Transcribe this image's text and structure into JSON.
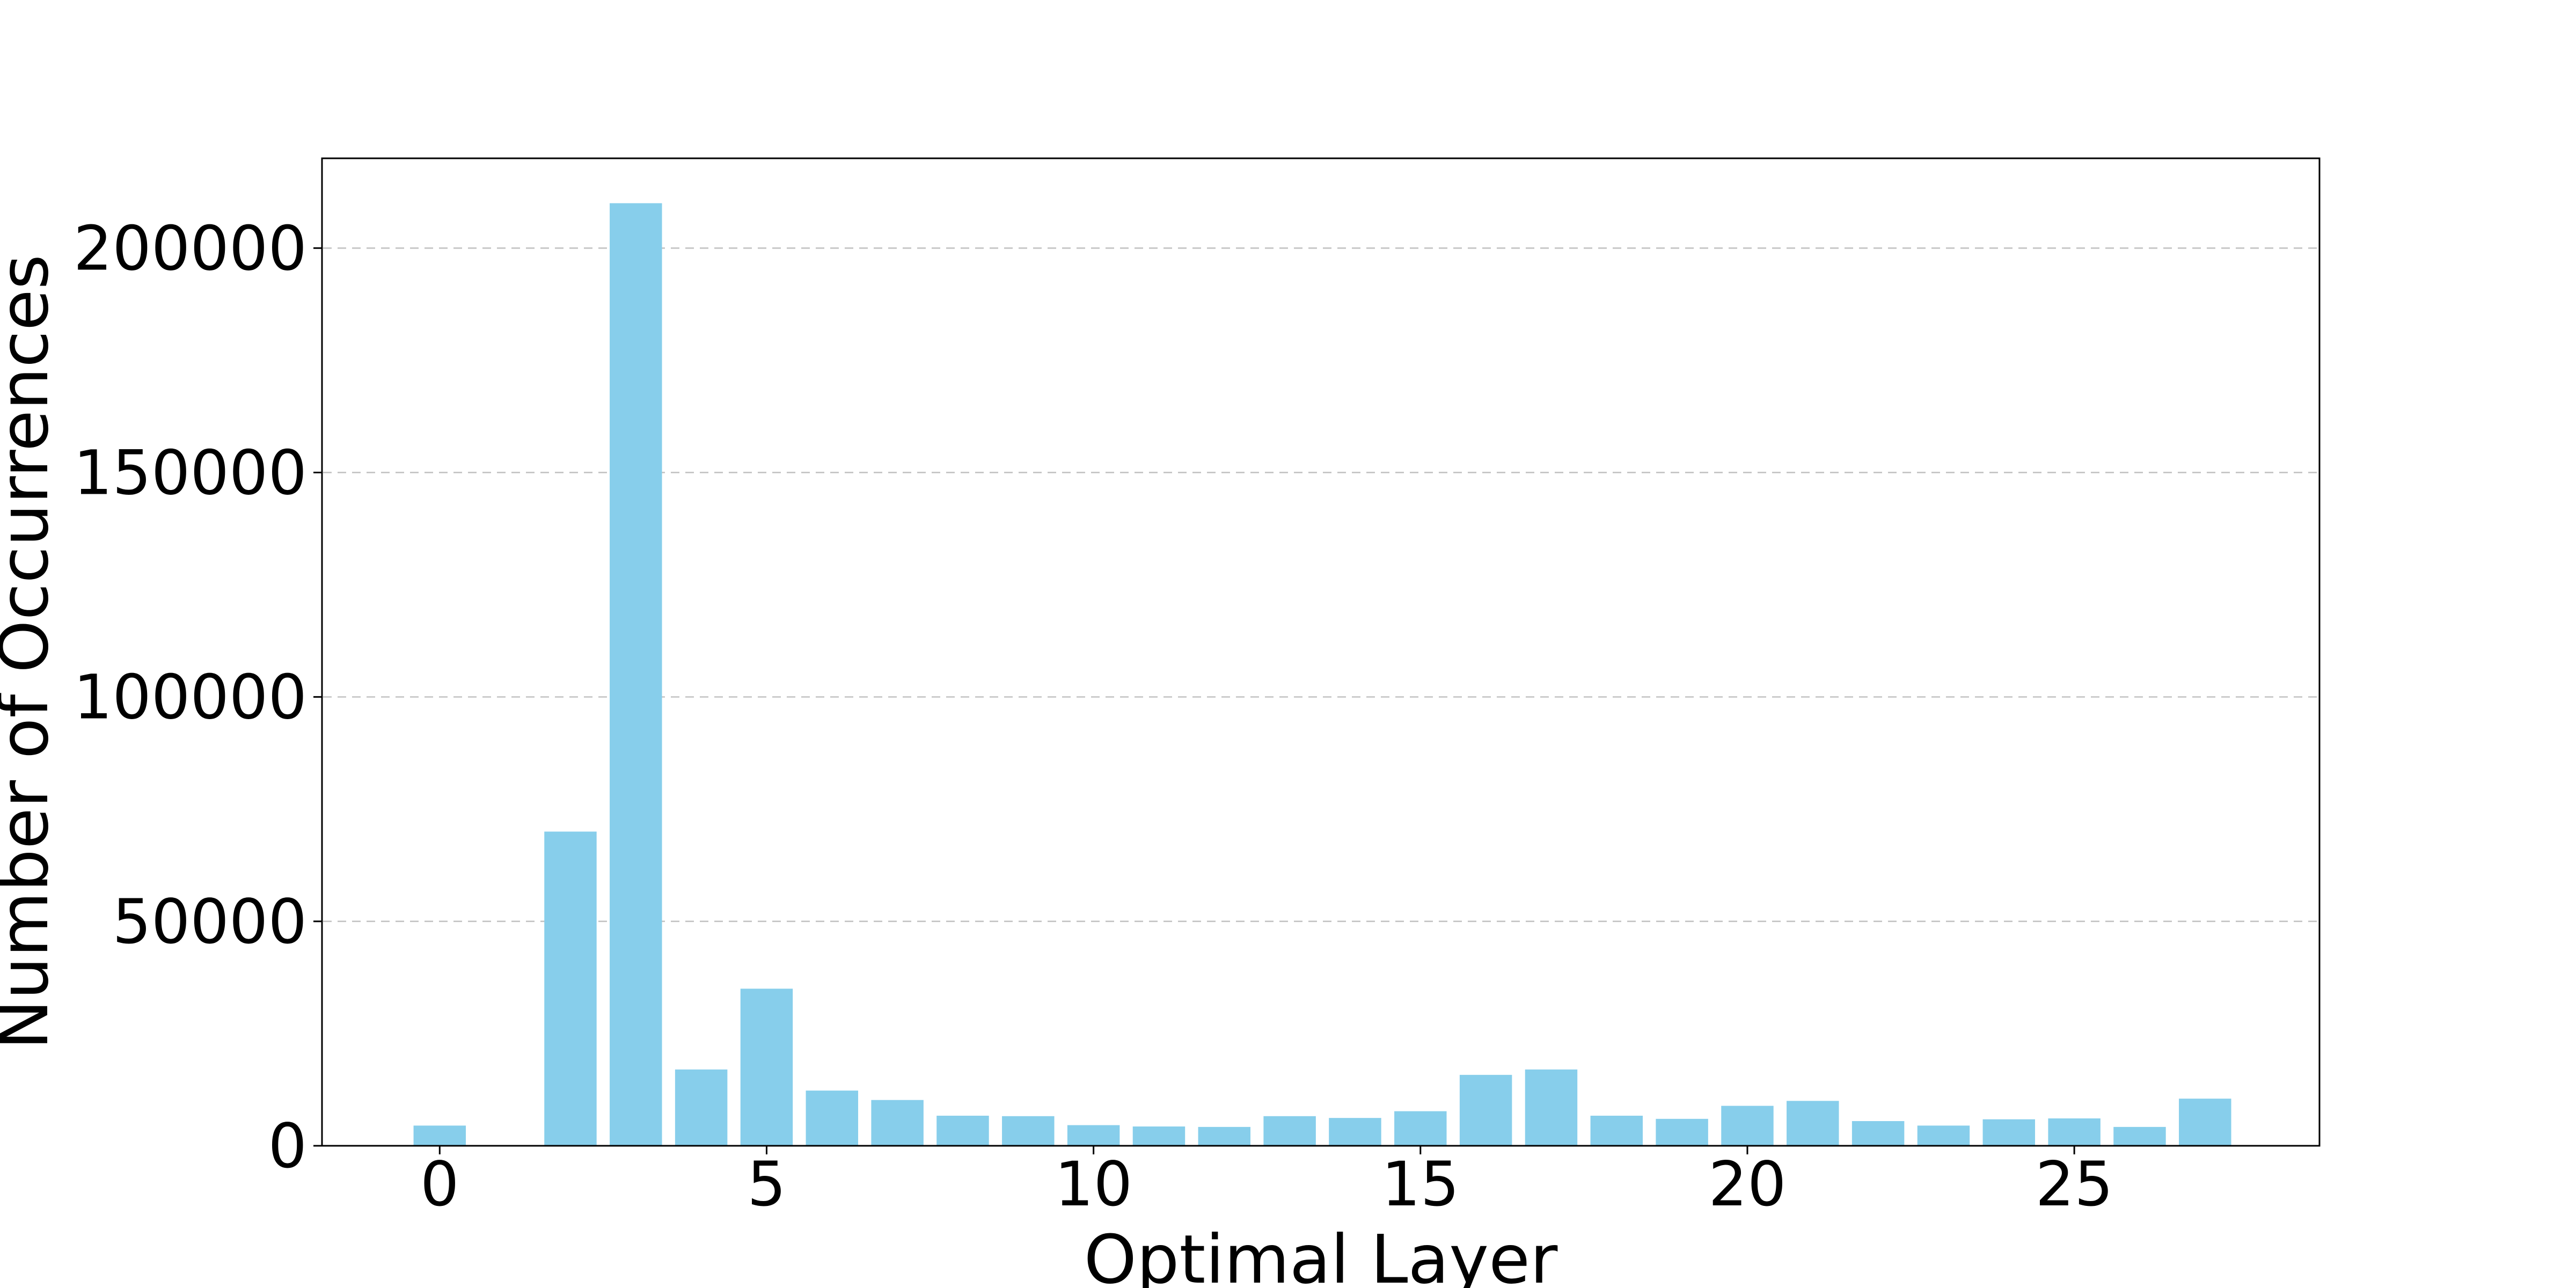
{
  "figure": {
    "background": "#ffffff",
    "spine_color": "#000000",
    "tick_color": "#000000"
  },
  "chart_data": {
    "type": "bar",
    "title": "",
    "xlabel": "Optimal Layer",
    "ylabel": "Number of Occurrences",
    "categories": [
      0,
      1,
      2,
      3,
      4,
      5,
      6,
      7,
      8,
      9,
      10,
      11,
      12,
      13,
      14,
      15,
      16,
      17,
      18,
      19,
      20,
      21,
      22,
      23,
      24,
      25,
      26,
      27
    ],
    "values": [
      4500,
      0,
      70000,
      210000,
      17000,
      35000,
      12300,
      10200,
      6700,
      6600,
      4600,
      4300,
      4200,
      6600,
      6200,
      7700,
      15800,
      17000,
      6700,
      6000,
      8900,
      10000,
      5500,
      4500,
      5900,
      6100,
      4200,
      10500
    ],
    "xticks": [
      0,
      5,
      10,
      15,
      20,
      25
    ],
    "yticks": [
      0,
      50000,
      100000,
      150000,
      200000
    ],
    "xlim": [
      -1.8,
      28.75
    ],
    "ylim": [
      0,
      220000
    ],
    "bar_color": "#87CEEB",
    "bar_width": 0.8,
    "grid": "horizontal-dashed",
    "grid_color": "#c2c2c2",
    "legend": "none"
  }
}
